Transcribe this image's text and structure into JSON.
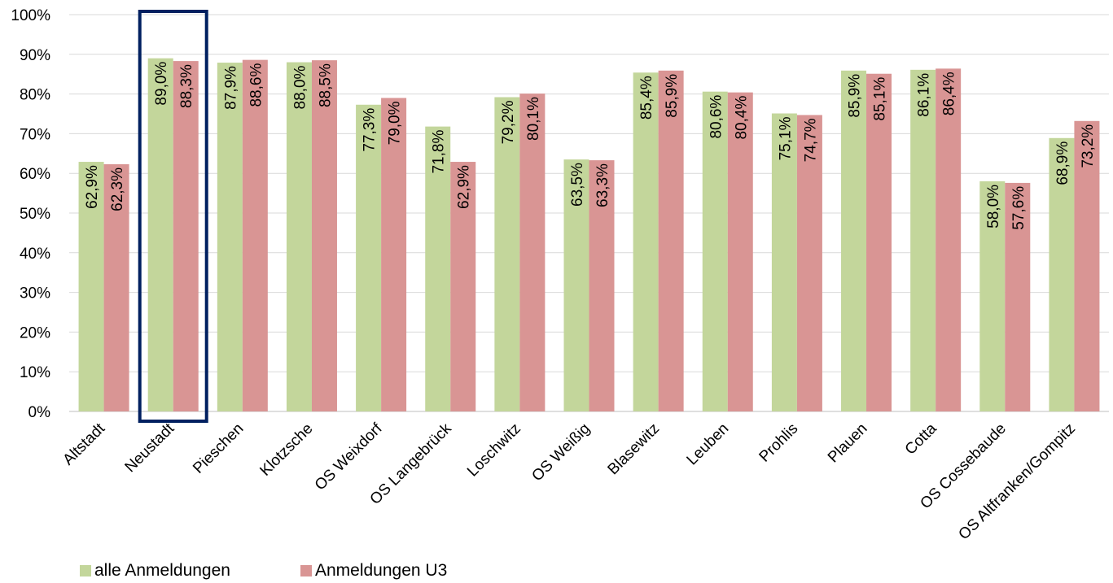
{
  "chart_data": {
    "type": "bar",
    "categories": [
      "Altstadt",
      "Neustadt",
      "Pieschen",
      "Klotzsche",
      "OS Weixdorf",
      "OS Langebrück",
      "Loschwitz",
      "OS Weißig",
      "Blasewitz",
      "Leuben",
      "Prohlis",
      "Plauen",
      "Cotta",
      "OS Cossebaude",
      "OS Altfranken/Gompitz"
    ],
    "series": [
      {
        "name": "alle Anmeldungen",
        "color": "#c3d69b",
        "values": [
          62.9,
          89.0,
          87.9,
          88.0,
          77.3,
          71.8,
          79.2,
          63.5,
          85.4,
          80.6,
          75.1,
          85.9,
          86.1,
          58.0,
          68.9
        ],
        "labels": [
          "62,9%",
          "89,0%",
          "87,9%",
          "88,0%",
          "77,3%",
          "71,8%",
          "79,2%",
          "63,5%",
          "85,4%",
          "80,6%",
          "75,1%",
          "85,9%",
          "86,1%",
          "58,0%",
          "68,9%"
        ]
      },
      {
        "name": "Anmeldungen U3",
        "color": "#d99594",
        "values": [
          62.3,
          88.3,
          88.6,
          88.5,
          79.0,
          62.9,
          80.1,
          63.3,
          85.9,
          80.4,
          74.7,
          85.1,
          86.4,
          57.6,
          73.2
        ],
        "labels": [
          "62,3%",
          "88,3%",
          "88,6%",
          "88,5%",
          "79,0%",
          "62,9%",
          "80,1%",
          "63,3%",
          "85,9%",
          "80,4%",
          "74,7%",
          "85,1%",
          "86,4%",
          "57,6%",
          "73,2%"
        ]
      }
    ],
    "ylim": [
      0,
      100
    ],
    "y_ticks": [
      "0%",
      "10%",
      "20%",
      "30%",
      "40%",
      "50%",
      "60%",
      "70%",
      "80%",
      "90%",
      "100%"
    ],
    "grid": true,
    "legend_position": "bottom-left",
    "highlight": {
      "category": "Neustadt",
      "color": "#002060"
    },
    "title": "",
    "xlabel": "",
    "ylabel": ""
  }
}
